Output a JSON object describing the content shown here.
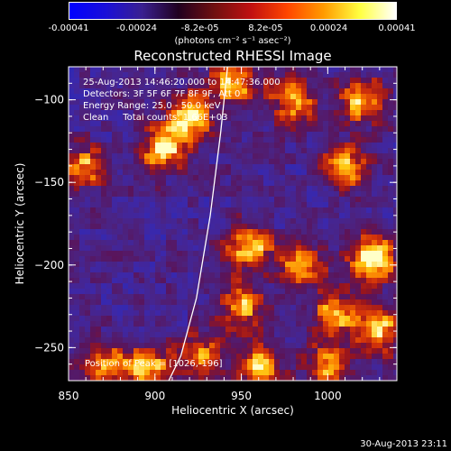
{
  "colorbar": {
    "tick_labels": [
      "-0.00041",
      "-0.00024",
      "-8.2e-05",
      "8.2e-05",
      "0.00024",
      "0.00041"
    ],
    "tick_values": [
      -0.00041,
      -0.00024,
      -8.2e-05,
      8.2e-05,
      0.00024,
      0.00041
    ],
    "range": [
      -0.00041,
      0.00041
    ],
    "units": "(photons cm⁻² s⁻¹ asec⁻²)",
    "gradient_stops": [
      "#0000ff",
      "#1a0fd8",
      "#3a2090",
      "#200020",
      "#701010",
      "#c01010",
      "#ff4500",
      "#ff9a00",
      "#ffff40",
      "#ffffff"
    ]
  },
  "chart_data": {
    "type": "heatmap",
    "title": "Reconstructed RHESSI Image",
    "xlabel": "Heliocentric X (arcsec)",
    "ylabel": "Heliocentric Y (arcsec)",
    "xlim": [
      850,
      1040
    ],
    "ylim": [
      -270,
      -80
    ],
    "xticks": [
      850,
      900,
      950,
      1000
    ],
    "xtick_labels": [
      "850",
      "900",
      "950",
      "1000"
    ],
    "yticks": [
      -100,
      -150,
      -200,
      -250
    ],
    "ytick_labels": [
      "−100",
      "−150",
      "−200",
      "−250"
    ],
    "limb_curve": {
      "x": [
        942,
        938,
        932,
        924,
        915,
        908
      ],
      "y": [
        -80,
        -120,
        -170,
        -220,
        -255,
        -270
      ]
    },
    "peak": [
      1026,
      -196
    ],
    "hot_spots": [
      {
        "x": 1026,
        "y": -196,
        "v": 1.0
      },
      {
        "x": 920,
        "y": -110,
        "v": 0.8
      },
      {
        "x": 905,
        "y": -130,
        "v": 0.8
      },
      {
        "x": 945,
        "y": -90,
        "v": 0.7
      },
      {
        "x": 980,
        "y": -100,
        "v": 0.7
      },
      {
        "x": 1010,
        "y": -140,
        "v": 0.7
      },
      {
        "x": 1030,
        "y": -240,
        "v": 0.75
      },
      {
        "x": 1005,
        "y": -230,
        "v": 0.7
      },
      {
        "x": 955,
        "y": -190,
        "v": 0.75
      },
      {
        "x": 950,
        "y": -225,
        "v": 0.7
      },
      {
        "x": 1020,
        "y": -100,
        "v": 0.7
      },
      {
        "x": 860,
        "y": -140,
        "v": 0.6
      },
      {
        "x": 870,
        "y": -260,
        "v": 0.6
      },
      {
        "x": 895,
        "y": -262,
        "v": 0.75
      },
      {
        "x": 925,
        "y": -255,
        "v": 0.65
      },
      {
        "x": 960,
        "y": -262,
        "v": 0.7
      },
      {
        "x": 1000,
        "y": -262,
        "v": 0.65
      },
      {
        "x": 985,
        "y": -200,
        "v": 0.6
      }
    ]
  },
  "info": {
    "line1": "25-Aug-2013 14:46:20.000 to 14:47:36.000",
    "line2": "Detectors: 3F 5F 6F 7F 8F 9F, Att 0",
    "line3": "Energy Range: 25.0 - 50.0 keV",
    "line4": "Clean     Total counts: 1.66E+03",
    "peak_label": "Position of Peak = [1026,-196]"
  },
  "footer_date": "30-Aug-2013 23:11"
}
